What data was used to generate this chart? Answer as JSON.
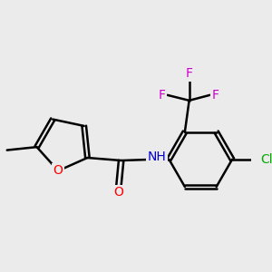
{
  "bg_color": "#ebebeb",
  "bond_color": "#000000",
  "bond_width": 1.8,
  "atom_colors": {
    "O": "#ff0000",
    "N": "#0000cd",
    "F": "#cc00cc",
    "Cl": "#00aa00",
    "C": "#000000",
    "H": "#555555"
  },
  "font_size": 10,
  "font_size_small": 9
}
